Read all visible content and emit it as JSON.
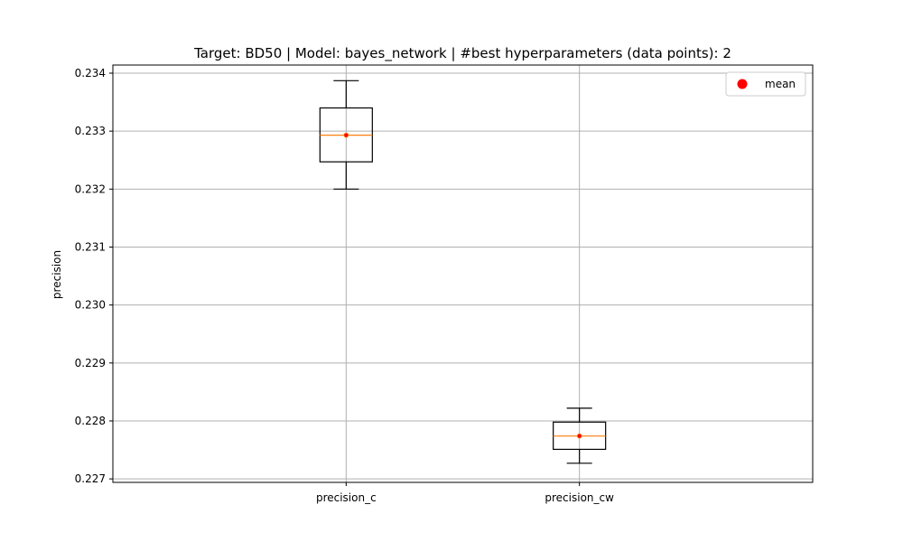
{
  "chart_data": {
    "type": "boxplot",
    "title": "Target: BD50 | Model: bayes_network | #best hyperparameters (data points): 2",
    "xlabel": "",
    "ylabel": "precision",
    "categories": [
      "precision_c",
      "precision_cw"
    ],
    "boxes": [
      {
        "name": "precision_c",
        "whisker_low": 0.232,
        "q1": 0.23247,
        "median": 0.23293,
        "q3": 0.2334,
        "whisker_high": 0.23387,
        "mean": 0.23293
      },
      {
        "name": "precision_cw",
        "whisker_low": 0.22727,
        "q1": 0.22751,
        "median": 0.22774,
        "q3": 0.22798,
        "whisker_high": 0.22822,
        "mean": 0.22774
      }
    ],
    "ylim": [
      0.22694,
      0.23414
    ],
    "yticks": [
      "0.227",
      "0.228",
      "0.229",
      "0.230",
      "0.231",
      "0.232",
      "0.233",
      "0.234"
    ],
    "ytick_values": [
      0.227,
      0.228,
      0.229,
      0.23,
      0.231,
      0.232,
      0.233,
      0.234
    ],
    "grid": true,
    "legend": {
      "placement": "top-right",
      "entries": [
        {
          "label": "mean",
          "marker": "circle",
          "color": "#ff0000"
        }
      ]
    },
    "colors": {
      "box": "#000000",
      "median": "#ff7f0e",
      "mean": "#ff0000",
      "grid": "#b0b0b0"
    }
  }
}
